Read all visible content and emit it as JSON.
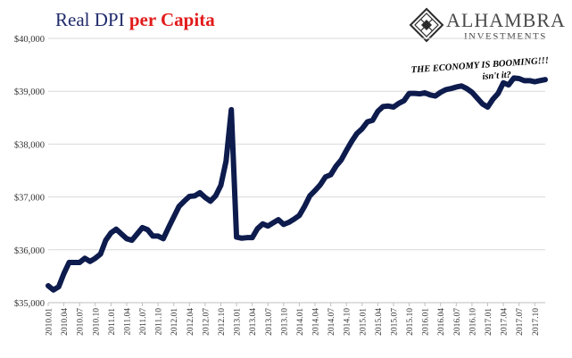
{
  "title": {
    "part1": "Real DPI ",
    "part2": "per Capita"
  },
  "brand": {
    "name": "ALHAMBRA",
    "tagline": "INVESTMENTS",
    "logo": "diamond-lattice-icon"
  },
  "colors": {
    "title_primary": "#1f2a6b",
    "title_accent": "#e21b1b",
    "line": "#0d1b4d",
    "grid": "#d9d9d9",
    "annotation": "#000000"
  },
  "chart_data": {
    "type": "line",
    "title": "Real DPI per Capita",
    "xlabel": "",
    "ylabel": "",
    "ylim": [
      35000,
      40000
    ],
    "yticks": [
      35000,
      36000,
      37000,
      38000,
      39000,
      40000
    ],
    "ytick_labels": [
      "$35,000",
      "$36,000",
      "$37,000",
      "$38,000",
      "$39,000",
      "$40,000"
    ],
    "xtick_labels": [
      "2010.01",
      "2010.04",
      "2010.07",
      "2010.10",
      "2011.01",
      "2011.04",
      "2011.07",
      "2011.10",
      "2012.01",
      "2012.04",
      "2012.07",
      "2012.10",
      "2013.01",
      "2013.04",
      "2013.07",
      "2013.10",
      "2014.01",
      "2014.04",
      "2014.07",
      "2014.10",
      "2015.01",
      "2015.04",
      "2015.07",
      "2015.10",
      "2016.01",
      "2016.04",
      "2016.07",
      "2016.10",
      "2017.01",
      "2017.04",
      "2017.07",
      "2017.10"
    ],
    "grid": true,
    "legend": "none",
    "annotation": {
      "line1": "THE ECONOMY IS BOOMING!!!",
      "line2": "isn't it?"
    },
    "series": [
      {
        "x": [
          "2010.01",
          "2010.02",
          "2010.03",
          "2010.04",
          "2010.05",
          "2010.06",
          "2010.07",
          "2010.08",
          "2010.09",
          "2010.10",
          "2010.11",
          "2010.12",
          "2011.01",
          "2011.02",
          "2011.03",
          "2011.04",
          "2011.05",
          "2011.06",
          "2011.07",
          "2011.08",
          "2011.09",
          "2011.10",
          "2011.11",
          "2011.12",
          "2012.01",
          "2012.02",
          "2012.03",
          "2012.04",
          "2012.05",
          "2012.06",
          "2012.07",
          "2012.08",
          "2012.09",
          "2012.10",
          "2012.11",
          "2012.12",
          "2013.01",
          "2013.02",
          "2013.03",
          "2013.04",
          "2013.05",
          "2013.06",
          "2013.07",
          "2013.08",
          "2013.09",
          "2013.10",
          "2013.11",
          "2013.12",
          "2014.01",
          "2014.02",
          "2014.03",
          "2014.04",
          "2014.05",
          "2014.06",
          "2014.07",
          "2014.08",
          "2014.09",
          "2014.10",
          "2014.11",
          "2014.12",
          "2015.01",
          "2015.02",
          "2015.03",
          "2015.04",
          "2015.05",
          "2015.06",
          "2015.07",
          "2015.08",
          "2015.09",
          "2015.10",
          "2015.11",
          "2015.12",
          "2016.01",
          "2016.02",
          "2016.03",
          "2016.04",
          "2016.05",
          "2016.06",
          "2016.07",
          "2016.08",
          "2016.09",
          "2016.10",
          "2016.11",
          "2016.12",
          "2017.01",
          "2017.02",
          "2017.03",
          "2017.04",
          "2017.05",
          "2017.06",
          "2017.07",
          "2017.08",
          "2017.09",
          "2017.10",
          "2017.11",
          "2017.12"
        ],
        "values": [
          35320,
          35240,
          35300,
          35550,
          35760,
          35760,
          35760,
          35840,
          35780,
          35840,
          35920,
          36180,
          36320,
          36390,
          36300,
          36210,
          36180,
          36300,
          36420,
          36380,
          36260,
          36260,
          36210,
          36420,
          36620,
          36820,
          36920,
          37010,
          37020,
          37080,
          36990,
          36920,
          37020,
          37220,
          37680,
          38650,
          36240,
          36220,
          36230,
          36230,
          36400,
          36490,
          36450,
          36510,
          36570,
          36480,
          36520,
          36580,
          36650,
          36820,
          37020,
          37120,
          37230,
          37380,
          37420,
          37580,
          37700,
          37880,
          38050,
          38200,
          38290,
          38420,
          38450,
          38620,
          38710,
          38720,
          38700,
          38770,
          38820,
          38960,
          38960,
          38950,
          38970,
          38930,
          38910,
          38980,
          39030,
          39050,
          39080,
          39100,
          39050,
          38980,
          38870,
          38760,
          38700,
          38850,
          38960,
          39160,
          39120,
          39250,
          39240,
          39200,
          39200,
          39180,
          39200,
          39220
        ]
      }
    ]
  }
}
